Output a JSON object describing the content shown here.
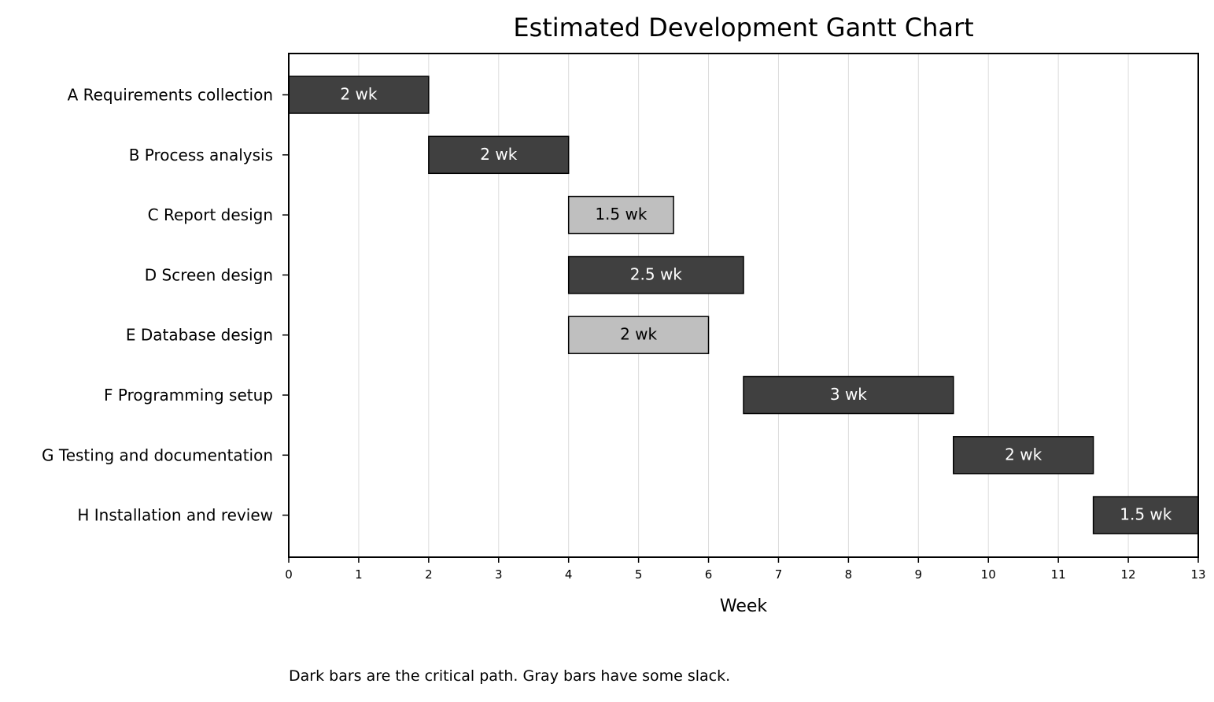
{
  "chart_data": {
    "type": "gantt",
    "title": "Estimated Development Gantt Chart",
    "xlabel": "Week",
    "xlim": [
      0,
      13
    ],
    "xticks": [
      0,
      1,
      2,
      3,
      4,
      5,
      6,
      7,
      8,
      9,
      10,
      11,
      12,
      13
    ],
    "grid": "vertical",
    "colors": {
      "critical": "#404040",
      "slack": "#bfbfbf",
      "critical_text": "#ffffff",
      "slack_text": "#000000"
    },
    "tasks": [
      {
        "label": "A Requirements collection",
        "start": 0,
        "duration": 2,
        "bar_label": "2 wk",
        "critical": true
      },
      {
        "label": "B Process analysis",
        "start": 2,
        "duration": 2,
        "bar_label": "2 wk",
        "critical": true
      },
      {
        "label": "C Report design",
        "start": 4,
        "duration": 1.5,
        "bar_label": "1.5 wk",
        "critical": false
      },
      {
        "label": "D Screen design",
        "start": 4,
        "duration": 2.5,
        "bar_label": "2.5 wk",
        "critical": true
      },
      {
        "label": "E Database design",
        "start": 4,
        "duration": 2,
        "bar_label": "2 wk",
        "critical": false
      },
      {
        "label": "F Programming setup",
        "start": 6.5,
        "duration": 3,
        "bar_label": "3 wk",
        "critical": true
      },
      {
        "label": "G Testing and documentation",
        "start": 9.5,
        "duration": 2,
        "bar_label": "2 wk",
        "critical": true
      },
      {
        "label": "H Installation and review",
        "start": 11.5,
        "duration": 1.5,
        "bar_label": "1.5 wk",
        "critical": true
      }
    ]
  },
  "footnote": "Dark bars are the critical path. Gray bars have some slack."
}
